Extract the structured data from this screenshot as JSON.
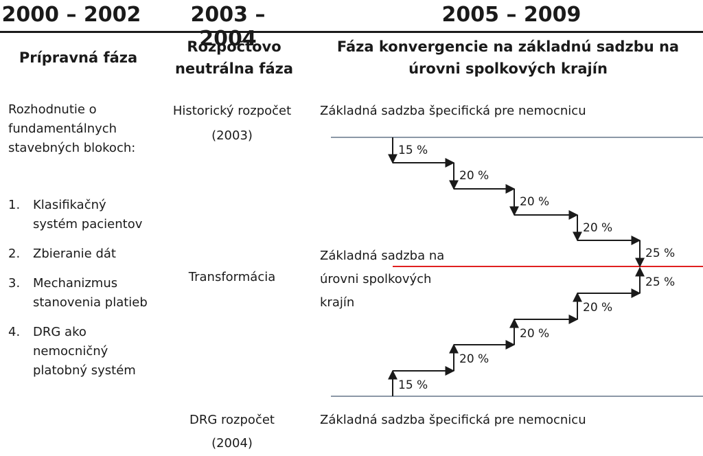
{
  "headers": {
    "years": [
      "2000 – 2002",
      "2003 – 2004",
      "2005 – 2009"
    ],
    "phases": [
      "Prípravná fáza",
      "Rozpočtovo neutrálna fáza",
      "Fáza konvergencie na základnú sadzbu na úrovni spolkových krajín"
    ]
  },
  "left": {
    "intro": "Rozhodnutie o fundamentálnych stavebných blokoch:",
    "items": [
      {
        "num": "1.",
        "text": "Klasifikačný systém pacientov"
      },
      {
        "num": "2.",
        "text": "Zbieranie dát"
      },
      {
        "num": "3.",
        "text": "Mechanizmus stanovenia platieb"
      },
      {
        "num": "4.",
        "text": "DRG ako nemocničný platobný systém"
      }
    ]
  },
  "middle": {
    "historic": "Historický rozpočet",
    "historic_year": "(2003)",
    "transform": "Transformácia",
    "drg": "DRG rozpočet",
    "drg_year": "(2004)"
  },
  "right": {
    "top_label": "Základná sadzba špecifická pre nemocnicu",
    "mid_label": "Základná sadzba na úrovni spolkových krajín",
    "bottom_label": "Základná sadzba špecifická pre nemocnicu",
    "colors": {
      "hospital_line": "#8b97a6",
      "state_line": "#e02020",
      "arrows": "#1a1a1a"
    }
  },
  "convergence": {
    "down_steps": [
      "15 %",
      "20 %",
      "20 %",
      "20 %",
      "25 %"
    ],
    "up_steps": [
      "15 %",
      "20 %",
      "20 %",
      "20 %",
      "25 %"
    ]
  }
}
